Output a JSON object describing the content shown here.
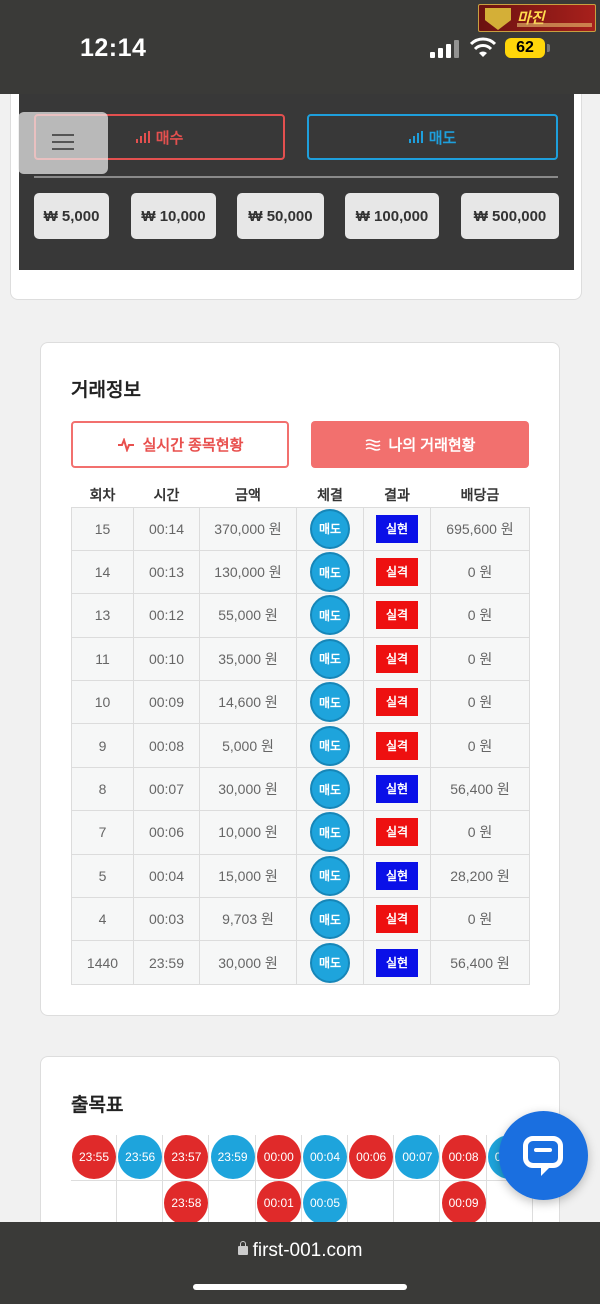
{
  "status": {
    "time": "12:14",
    "battery": "62",
    "watermark_text": "마진"
  },
  "trade_panel": {
    "buy_label": "매수",
    "sell_label": "매도",
    "amounts": [
      "₩ 5,000",
      "₩ 10,000",
      "₩ 50,000",
      "₩ 100,000",
      "₩ 500,000"
    ],
    "colors": {
      "buy": "#e3504f",
      "sell": "#1e9fdc"
    }
  },
  "trade_info": {
    "title": "거래정보",
    "tab_live": "실시간 종목현황",
    "tab_mine": "나의 거래현황",
    "columns": [
      "회차",
      "시간",
      "금액",
      "체결",
      "결과",
      "배당금"
    ],
    "rows": [
      {
        "round": "15",
        "time": "00:14",
        "amount": "370,000 원",
        "exec": "매도",
        "result": "실현",
        "win": true,
        "payout": "695,600 원"
      },
      {
        "round": "14",
        "time": "00:13",
        "amount": "130,000 원",
        "exec": "매도",
        "result": "실격",
        "win": false,
        "payout": "0 원"
      },
      {
        "round": "13",
        "time": "00:12",
        "amount": "55,000 원",
        "exec": "매도",
        "result": "실격",
        "win": false,
        "payout": "0 원"
      },
      {
        "round": "11",
        "time": "00:10",
        "amount": "35,000 원",
        "exec": "매도",
        "result": "실격",
        "win": false,
        "payout": "0 원"
      },
      {
        "round": "10",
        "time": "00:09",
        "amount": "14,600 원",
        "exec": "매도",
        "result": "실격",
        "win": false,
        "payout": "0 원"
      },
      {
        "round": "9",
        "time": "00:08",
        "amount": "5,000 원",
        "exec": "매도",
        "result": "실격",
        "win": false,
        "payout": "0 원"
      },
      {
        "round": "8",
        "time": "00:07",
        "amount": "30,000 원",
        "exec": "매도",
        "result": "실현",
        "win": true,
        "payout": "56,400 원"
      },
      {
        "round": "7",
        "time": "00:06",
        "amount": "10,000 원",
        "exec": "매도",
        "result": "실격",
        "win": false,
        "payout": "0 원"
      },
      {
        "round": "5",
        "time": "00:04",
        "amount": "15,000 원",
        "exec": "매도",
        "result": "실현",
        "win": true,
        "payout": "28,200 원"
      },
      {
        "round": "4",
        "time": "00:03",
        "amount": "9,703 원",
        "exec": "매도",
        "result": "실격",
        "win": false,
        "payout": "0 원"
      },
      {
        "round": "1440",
        "time": "23:59",
        "amount": "30,000 원",
        "exec": "매도",
        "result": "실현",
        "win": true,
        "payout": "56,400 원"
      }
    ]
  },
  "result_table": {
    "title": "출목표",
    "columns": [
      [
        {
          "t": "23:55",
          "c": "red"
        }
      ],
      [
        {
          "t": "23:56",
          "c": "blue"
        }
      ],
      [
        {
          "t": "23:57",
          "c": "red"
        },
        {
          "t": "23:58",
          "c": "red"
        }
      ],
      [
        {
          "t": "23:59",
          "c": "blue"
        }
      ],
      [
        {
          "t": "00:00",
          "c": "red"
        },
        {
          "t": "00:01",
          "c": "red"
        }
      ],
      [
        {
          "t": "00:04",
          "c": "blue"
        },
        {
          "t": "00:05",
          "c": "blue"
        }
      ],
      [
        {
          "t": "00:06",
          "c": "red"
        }
      ],
      [
        {
          "t": "00:07",
          "c": "blue"
        }
      ],
      [
        {
          "t": "00:08",
          "c": "red"
        },
        {
          "t": "00:09",
          "c": "red"
        }
      ],
      [
        {
          "t": "00:10",
          "c": "blue"
        }
      ]
    ]
  },
  "browser": {
    "url": "first-001.com"
  }
}
